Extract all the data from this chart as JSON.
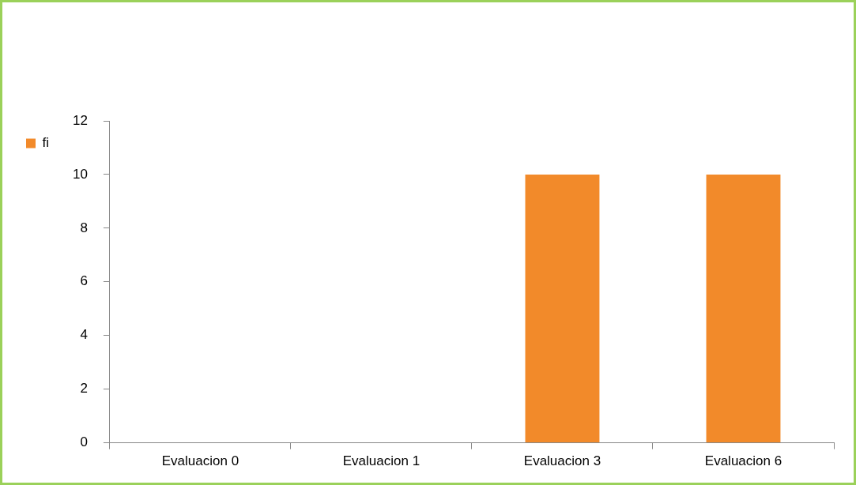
{
  "chart_data": {
    "type": "bar",
    "categories": [
      "Evaluacion 0",
      "Evaluacion 1",
      "Evaluacion 3",
      "Evaluacion 6"
    ],
    "series": [
      {
        "name": "fi",
        "color": "#f28a2a",
        "values": [
          0,
          0,
          10,
          10
        ]
      }
    ],
    "ylim": [
      0,
      12
    ],
    "yticks": [
      0,
      2,
      4,
      6,
      8,
      10,
      12
    ],
    "grid": false,
    "legend": "left"
  }
}
